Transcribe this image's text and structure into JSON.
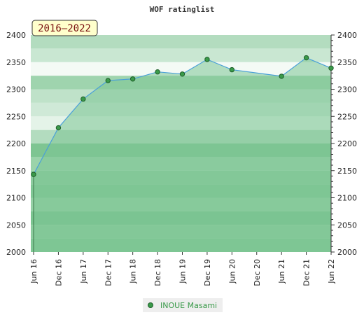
{
  "chart_data": {
    "type": "area",
    "title": "WOF ratinglist",
    "period_label": "2016–2022",
    "xlabel": "",
    "ylabel": "",
    "ylim": [
      2000,
      2400
    ],
    "yticks": [
      2000,
      2050,
      2100,
      2150,
      2200,
      2250,
      2300,
      2350,
      2400
    ],
    "x_categories": [
      "Jun 16",
      "Dec 16",
      "Jun 17",
      "Dec 17",
      "Jun 18",
      "Dec 18",
      "Jun 19",
      "Dec 19",
      "Jun 20",
      "Dec 20",
      "Jun 21",
      "Dec 21",
      "Jun 22"
    ],
    "grid": true,
    "legend_position": "bottom-center",
    "series": [
      {
        "name": "INOUE Masami",
        "color": "#4aa0d8",
        "fill": "#7cc494",
        "marker_color": "#3a9a4a",
        "points": [
          {
            "x": "Jun 16",
            "y": 2143
          },
          {
            "x": "Dec 16",
            "y": 2229
          },
          {
            "x": "Jun 17",
            "y": 2282
          },
          {
            "x": "Dec 17",
            "y": 2316
          },
          {
            "x": "Jun 18",
            "y": 2319
          },
          {
            "x": "Dec 18",
            "y": 2332
          },
          {
            "x": "Jun 19",
            "y": 2328
          },
          {
            "x": "Dec 19",
            "y": 2355
          },
          {
            "x": "Jun 20",
            "y": 2336
          },
          {
            "x": "Jun 21",
            "y": 2324
          },
          {
            "x": "Dec 21",
            "y": 2358
          },
          {
            "x": "Jun 22",
            "y": 2339
          }
        ]
      }
    ]
  }
}
